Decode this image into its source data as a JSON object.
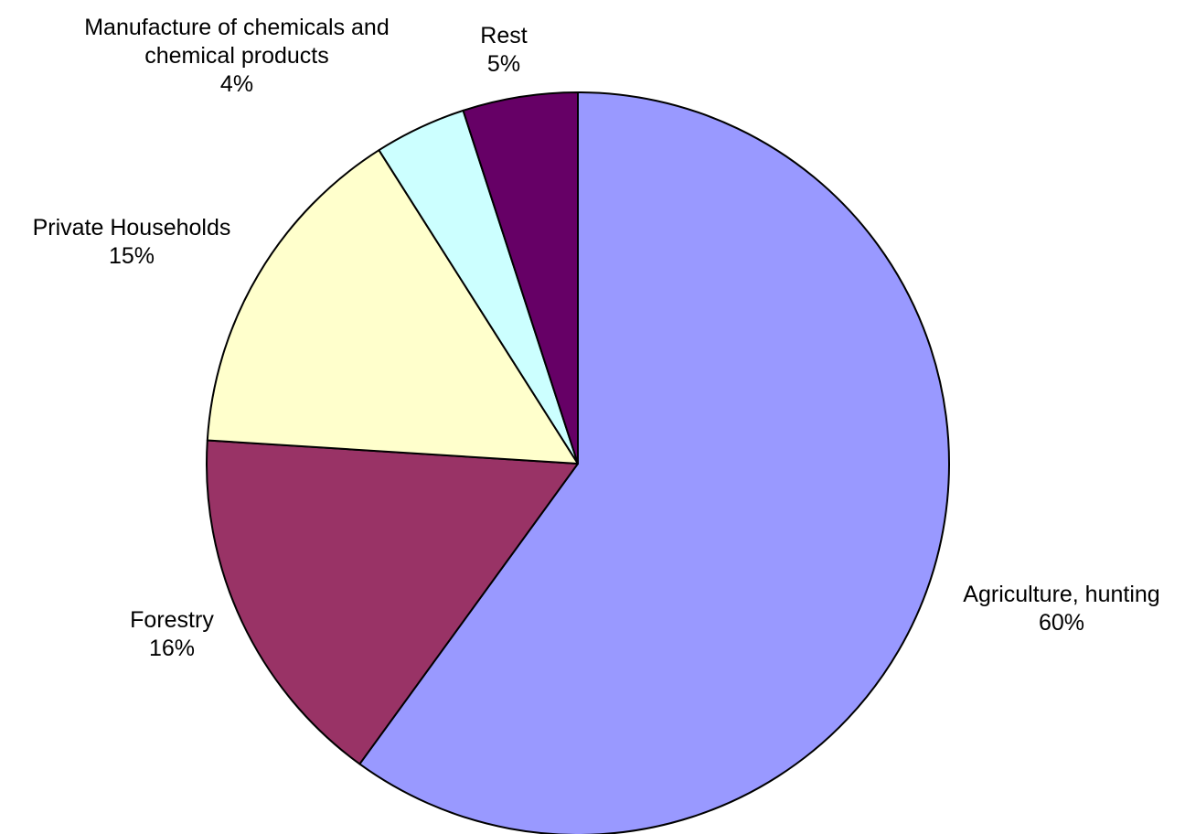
{
  "chart_data": {
    "type": "pie",
    "title": "",
    "start_angle_deg": 0,
    "direction": "clockwise",
    "slices": [
      {
        "name": "Agriculture, hunting",
        "value": 60,
        "label": "60%",
        "color": "#9999FF"
      },
      {
        "name": "Forestry",
        "value": 16,
        "label": "16%",
        "color": "#993366"
      },
      {
        "name": "Private Households",
        "value": 15,
        "label": "15%",
        "color": "#FFFFCC"
      },
      {
        "name": "Manufacture of chemicals and chemical products",
        "label_lines": [
          "Manufacture of chemicals and",
          "chemical products"
        ],
        "value": 4,
        "label": "4%",
        "color": "#CCFFFF"
      },
      {
        "name": "Rest",
        "value": 5,
        "label": "5%",
        "color": "#660066"
      }
    ]
  }
}
